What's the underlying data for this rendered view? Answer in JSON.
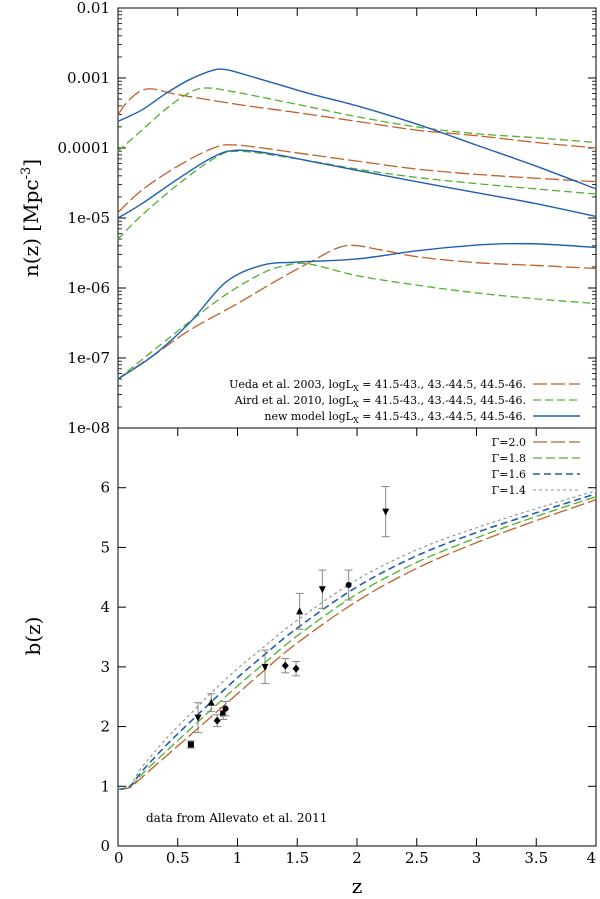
{
  "colors": {
    "ueda": "#c0602a",
    "aird": "#4fb22a",
    "new_model": "#1f5fb0",
    "g20": "#c0602a",
    "g18": "#4fb22a",
    "g16": "#1f5fb0",
    "g14": "#909090",
    "points": "#000000",
    "errorbars": "#888888"
  },
  "chart_data": [
    {
      "type": "line",
      "yscale": "log",
      "ylabel": "n(z) [Mpc",
      "ylabel_sup": "-3",
      "ylabel_end": "]",
      "xlim": [
        0,
        4
      ],
      "ylim": [
        1e-08,
        0.01
      ],
      "yticks": [
        {
          "v": 0.01,
          "label": "0.01"
        },
        {
          "v": 0.001,
          "label": "0.001"
        },
        {
          "v": 0.0001,
          "label": "0.0001"
        },
        {
          "v": 1e-05,
          "label": "1e-05"
        },
        {
          "v": 1e-06,
          "label": "1e-06"
        },
        {
          "v": 1e-07,
          "label": "1e-07"
        },
        {
          "v": 1e-08,
          "label": "1e-08"
        }
      ],
      "legend": [
        {
          "label": "Ueda et al. 2003, logL",
          "suffix": " = 41.5-43., 43.-44.5, 44.5-46.",
          "style": "ueda"
        },
        {
          "label": "Aird et al. 2010, logL",
          "suffix": " = 41.5-43., 43.-44.5, 44.5-46.",
          "style": "aird"
        },
        {
          "label": "new model logL",
          "suffix": " = 41.5-43., 43.-44.5, 44.5-46.",
          "style": "new_model"
        }
      ],
      "legend_sub": "X",
      "series": [
        {
          "name": "Ueda 41.5-43",
          "style": "ueda",
          "points": [
            [
              0,
              0.0003
            ],
            [
              0.1,
              0.0005
            ],
            [
              0.25,
              0.0007
            ],
            [
              0.5,
              0.00058
            ],
            [
              1,
              0.00042
            ],
            [
              1.5,
              0.00032
            ],
            [
              2,
              0.00024
            ],
            [
              2.5,
              0.00018
            ],
            [
              3,
              0.00015
            ],
            [
              3.5,
              0.00012
            ],
            [
              4,
              0.0001
            ]
          ]
        },
        {
          "name": "Ueda 43-44.5",
          "style": "ueda",
          "points": [
            [
              0,
              1.2e-05
            ],
            [
              0.2,
              2.5e-05
            ],
            [
              0.5,
              5.5e-05
            ],
            [
              0.8,
              0.0001
            ],
            [
              1,
              0.00011
            ],
            [
              1.5,
              8.5e-05
            ],
            [
              2,
              6.5e-05
            ],
            [
              2.5,
              5e-05
            ],
            [
              3,
              4.2e-05
            ],
            [
              3.5,
              3.7e-05
            ],
            [
              4,
              3.3e-05
            ]
          ]
        },
        {
          "name": "Ueda 44.5-46",
          "style": "ueda",
          "points": [
            [
              0,
              5e-08
            ],
            [
              0.3,
              1.1e-07
            ],
            [
              0.6,
              2.5e-07
            ],
            [
              1,
              6e-07
            ],
            [
              1.3,
              1.2e-06
            ],
            [
              1.6,
              2.3e-06
            ],
            [
              1.9,
              4e-06
            ],
            [
              2.2,
              3.5e-06
            ],
            [
              2.5,
              2.8e-06
            ],
            [
              3,
              2.3e-06
            ],
            [
              3.5,
              2.1e-06
            ],
            [
              4,
              1.9e-06
            ]
          ]
        },
        {
          "name": "Aird 41.5-43",
          "style": "aird",
          "points": [
            [
              0,
              9e-05
            ],
            [
              0.2,
              0.00018
            ],
            [
              0.4,
              0.00036
            ],
            [
              0.6,
              0.00062
            ],
            [
              0.75,
              0.00072
            ],
            [
              1,
              0.00062
            ],
            [
              1.5,
              0.00042
            ],
            [
              2,
              0.00028
            ],
            [
              2.5,
              0.0002
            ],
            [
              3,
              0.00016
            ],
            [
              3.5,
              0.00014
            ],
            [
              4,
              0.00012
            ]
          ]
        },
        {
          "name": "Aird 43-44.5",
          "style": "aird",
          "points": [
            [
              0,
              5e-06
            ],
            [
              0.2,
              1.1e-05
            ],
            [
              0.5,
              3e-05
            ],
            [
              0.8,
              7e-05
            ],
            [
              1,
              9e-05
            ],
            [
              1.5,
              7e-05
            ],
            [
              2,
              5e-05
            ],
            [
              2.5,
              3.8e-05
            ],
            [
              3,
              3.1e-05
            ],
            [
              3.5,
              2.6e-05
            ],
            [
              4,
              2.2e-05
            ]
          ]
        },
        {
          "name": "Aird 44.5-46",
          "style": "aird",
          "points": [
            [
              0,
              5e-08
            ],
            [
              0.3,
              1.3e-07
            ],
            [
              0.6,
              3.3e-07
            ],
            [
              0.9,
              8e-07
            ],
            [
              1.2,
              1.6e-06
            ],
            [
              1.4,
              2.1e-06
            ],
            [
              1.6,
              2.2e-06
            ],
            [
              2,
              1.5e-06
            ],
            [
              2.5,
              1.1e-06
            ],
            [
              3,
              8.5e-07
            ],
            [
              3.5,
              7e-07
            ],
            [
              4,
              6e-07
            ]
          ]
        },
        {
          "name": "New 41.5-43",
          "style": "new_model",
          "points": [
            [
              0,
              0.00024
            ],
            [
              0.2,
              0.00035
            ],
            [
              0.4,
              0.0006
            ],
            [
              0.6,
              0.00095
            ],
            [
              0.8,
              0.0013
            ],
            [
              0.9,
              0.00132
            ],
            [
              1,
              0.0012
            ],
            [
              1.3,
              0.00085
            ],
            [
              1.6,
              0.0006
            ],
            [
              2,
              0.0004
            ],
            [
              2.5,
              0.00022
            ],
            [
              3,
              0.00011
            ],
            [
              3.5,
              5.5e-05
            ],
            [
              4,
              2.6e-05
            ]
          ]
        },
        {
          "name": "New 43-44.5",
          "style": "new_model",
          "points": [
            [
              0,
              1e-05
            ],
            [
              0.2,
              1.6e-05
            ],
            [
              0.5,
              3.6e-05
            ],
            [
              0.8,
              7.5e-05
            ],
            [
              1,
              9.3e-05
            ],
            [
              1.3,
              8.2e-05
            ],
            [
              1.6,
              6.5e-05
            ],
            [
              2,
              4.8e-05
            ],
            [
              2.5,
              3.3e-05
            ],
            [
              3,
              2.3e-05
            ],
            [
              3.5,
              1.6e-05
            ],
            [
              4,
              1.05e-05
            ]
          ]
        },
        {
          "name": "New 44.5-46",
          "style": "new_model",
          "points": [
            [
              0,
              5e-08
            ],
            [
              0.3,
              1.1e-07
            ],
            [
              0.6,
              3.2e-07
            ],
            [
              0.9,
              1.2e-06
            ],
            [
              1.2,
              2.1e-06
            ],
            [
              1.5,
              2.35e-06
            ],
            [
              2,
              2.6e-06
            ],
            [
              2.5,
              3.4e-06
            ],
            [
              3,
              4.1e-06
            ],
            [
              3.3,
              4.3e-06
            ],
            [
              3.6,
              4.2e-06
            ],
            [
              4,
              3.8e-06
            ]
          ]
        }
      ]
    },
    {
      "type": "line",
      "xlabel": "z",
      "ylabel": "b(z)",
      "xlim": [
        0,
        4
      ],
      "ylim": [
        0,
        7
      ],
      "xticks": [
        {
          "v": 0,
          "label": "0"
        },
        {
          "v": 0.5,
          "label": "0.5"
        },
        {
          "v": 1,
          "label": "1"
        },
        {
          "v": 1.5,
          "label": "1.5"
        },
        {
          "v": 2,
          "label": "2"
        },
        {
          "v": 2.5,
          "label": "2.5"
        },
        {
          "v": 3,
          "label": "3"
        },
        {
          "v": 3.5,
          "label": "3.5"
        },
        {
          "v": 4,
          "label": "4"
        }
      ],
      "yticks": [
        {
          "v": 0,
          "label": "0"
        },
        {
          "v": 1,
          "label": "1"
        },
        {
          "v": 2,
          "label": "2"
        },
        {
          "v": 3,
          "label": "3"
        },
        {
          "v": 4,
          "label": "4"
        },
        {
          "v": 5,
          "label": "5"
        },
        {
          "v": 6,
          "label": "6"
        }
      ],
      "legend": [
        {
          "label": "Γ=2.0",
          "style": "g20"
        },
        {
          "label": "Γ=1.8",
          "style": "g18"
        },
        {
          "label": "Γ=1.6",
          "style": "g16"
        },
        {
          "label": "Γ=1.4",
          "style": "g14"
        }
      ],
      "annotation": "data from Allevato et al. 2011",
      "series": [
        {
          "name": "Γ=2.0",
          "style": "g20",
          "points": [
            [
              0,
              0.95
            ],
            [
              0.1,
              0.98
            ],
            [
              0.2,
              1.15
            ],
            [
              0.4,
              1.5
            ],
            [
              0.6,
              1.85
            ],
            [
              0.8,
              2.2
            ],
            [
              1,
              2.55
            ],
            [
              1.2,
              2.9
            ],
            [
              1.5,
              3.4
            ],
            [
              2,
              4.1
            ],
            [
              2.5,
              4.65
            ],
            [
              3,
              5.08
            ],
            [
              3.5,
              5.45
            ],
            [
              4,
              5.8
            ]
          ]
        },
        {
          "name": "Γ=1.8",
          "style": "g18",
          "points": [
            [
              0,
              0.95
            ],
            [
              0.1,
              0.99
            ],
            [
              0.2,
              1.2
            ],
            [
              0.4,
              1.58
            ],
            [
              0.6,
              1.95
            ],
            [
              0.8,
              2.32
            ],
            [
              1,
              2.68
            ],
            [
              1.2,
              3.02
            ],
            [
              1.5,
              3.52
            ],
            [
              2,
              4.22
            ],
            [
              2.5,
              4.75
            ],
            [
              3,
              5.16
            ],
            [
              3.5,
              5.52
            ],
            [
              4,
              5.85
            ]
          ]
        },
        {
          "name": "Γ=1.6",
          "style": "g16",
          "points": [
            [
              0,
              0.95
            ],
            [
              0.1,
              1.0
            ],
            [
              0.2,
              1.25
            ],
            [
              0.4,
              1.68
            ],
            [
              0.6,
              2.07
            ],
            [
              0.8,
              2.45
            ],
            [
              1,
              2.82
            ],
            [
              1.2,
              3.16
            ],
            [
              1.5,
              3.65
            ],
            [
              2,
              4.34
            ],
            [
              2.5,
              4.86
            ],
            [
              3,
              5.25
            ],
            [
              3.5,
              5.58
            ],
            [
              4,
              5.9
            ]
          ]
        },
        {
          "name": "Γ=1.4",
          "style": "g14",
          "points": [
            [
              0,
              0.95
            ],
            [
              0.1,
              1.02
            ],
            [
              0.2,
              1.32
            ],
            [
              0.4,
              1.79
            ],
            [
              0.6,
              2.2
            ],
            [
              0.8,
              2.6
            ],
            [
              1,
              2.97
            ],
            [
              1.2,
              3.3
            ],
            [
              1.5,
              3.78
            ],
            [
              2,
              4.46
            ],
            [
              2.5,
              4.96
            ],
            [
              3,
              5.33
            ],
            [
              3.5,
              5.65
            ],
            [
              4,
              5.95
            ]
          ]
        }
      ],
      "points": [
        {
          "x": 0.61,
          "y": 1.7,
          "err": 0.06,
          "marker": "square"
        },
        {
          "x": 0.67,
          "y": 2.15,
          "err": 0.25,
          "marker": "triangle-down"
        },
        {
          "x": 0.78,
          "y": 2.4,
          "err": 0.15,
          "marker": "triangle-up"
        },
        {
          "x": 0.83,
          "y": 2.1,
          "err": 0.1,
          "marker": "diamond"
        },
        {
          "x": 0.88,
          "y": 2.22,
          "err": 0.1,
          "marker": "square"
        },
        {
          "x": 0.9,
          "y": 2.3,
          "err": 0.12,
          "marker": "circle"
        },
        {
          "x": 1.23,
          "y": 3.0,
          "err": 0.28,
          "marker": "triangle-down"
        },
        {
          "x": 1.4,
          "y": 3.02,
          "err": 0.12,
          "marker": "diamond"
        },
        {
          "x": 1.49,
          "y": 2.97,
          "err": 0.12,
          "marker": "diamond"
        },
        {
          "x": 1.52,
          "y": 3.93,
          "err": 0.3,
          "marker": "triangle-up"
        },
        {
          "x": 1.71,
          "y": 4.3,
          "err": 0.32,
          "marker": "triangle-down"
        },
        {
          "x": 1.93,
          "y": 4.37,
          "err": 0.25,
          "marker": "circle"
        },
        {
          "x": 2.24,
          "y": 5.6,
          "err": 0.42,
          "marker": "triangle-down"
        }
      ]
    }
  ]
}
